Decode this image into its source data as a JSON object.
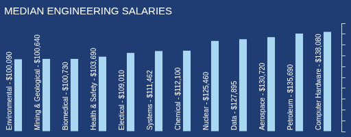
{
  "chart_data": {
    "type": "bar",
    "title": "MEDIAN ENGINEERING SALARIES",
    "categories": [
      "Environmental - $100,090",
      "Mining & Geological - $100,640",
      "Biomedical - $100,730",
      "Health & Safety - $103,690",
      "Electical - $109,010",
      "Systems - $111,462",
      "Chemical - $112,100",
      "Nuclear - $125,460",
      "Data - $127,895",
      "Aerospace - $130,720",
      "Petroleum - $135,690",
      "Computer Hardware - $138,080"
    ],
    "values": [
      100090,
      100640,
      100730,
      103690,
      109010,
      111462,
      112100,
      125460,
      127895,
      130720,
      135690,
      138080
    ],
    "color": "#a9d6f0",
    "ylim": [
      0,
      150000
    ],
    "yticks": [
      0,
      15000,
      30000,
      45000,
      60000,
      75000,
      90000,
      105000,
      120000,
      135000,
      150000
    ],
    "grid": false,
    "tick_labels": "x"
  }
}
